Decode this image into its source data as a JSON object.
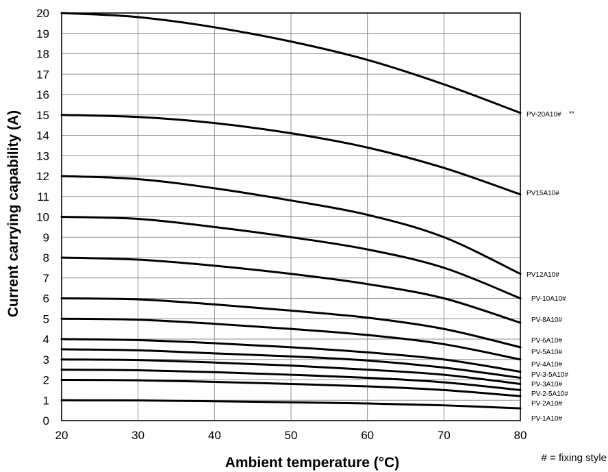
{
  "chart_data": {
    "type": "line",
    "title": "",
    "xlabel": "Ambient temperature  (°C)",
    "ylabel": "Current carrying capability (A)",
    "xlim": [
      20,
      80
    ],
    "ylim": [
      0,
      20
    ],
    "xticks": [
      "20",
      "30",
      "40",
      "50",
      "60",
      "70",
      "80"
    ],
    "yticks": [
      "0",
      "1",
      "2",
      "3",
      "4",
      "5",
      "6",
      "7",
      "8",
      "9",
      "10",
      "11",
      "12",
      "13",
      "14",
      "15",
      "16",
      "17",
      "18",
      "19",
      "20"
    ],
    "grid": true,
    "x": [
      20,
      30,
      40,
      50,
      60,
      70,
      80
    ],
    "series": [
      {
        "name": "PV-20A10#",
        "values": [
          20,
          19.8,
          19.3,
          18.6,
          17.7,
          16.5,
          15.1
        ]
      },
      {
        "name": "PV15A10#",
        "values": [
          15,
          14.9,
          14.6,
          14.1,
          13.4,
          12.4,
          11.1
        ]
      },
      {
        "name": "PV12A10#",
        "values": [
          12,
          11.85,
          11.4,
          10.8,
          10.1,
          9.0,
          7.2
        ]
      },
      {
        "name": "PV-10A10#",
        "values": [
          10,
          9.9,
          9.5,
          9.0,
          8.4,
          7.5,
          6.0
        ]
      },
      {
        "name": "PV-8A10#",
        "values": [
          8,
          7.9,
          7.6,
          7.2,
          6.7,
          6.0,
          4.8
        ]
      },
      {
        "name": "PV-6A10#",
        "values": [
          6,
          5.95,
          5.7,
          5.4,
          5.05,
          4.5,
          3.6
        ]
      },
      {
        "name": "PV-5A10#",
        "values": [
          5,
          4.95,
          4.75,
          4.5,
          4.2,
          3.75,
          3.0
        ]
      },
      {
        "name": "PV-4A10#",
        "values": [
          4,
          3.95,
          3.8,
          3.6,
          3.35,
          3.0,
          2.4
        ]
      },
      {
        "name": "PV-3-5A10#",
        "values": [
          3.5,
          3.45,
          3.3,
          3.15,
          2.95,
          2.6,
          2.1
        ]
      },
      {
        "name": "PV-3A10#",
        "values": [
          3,
          2.97,
          2.85,
          2.7,
          2.5,
          2.25,
          1.8
        ]
      },
      {
        "name": "PV-2-5A10#",
        "values": [
          2.5,
          2.47,
          2.38,
          2.25,
          2.1,
          1.88,
          1.5
        ]
      },
      {
        "name": "PV-2A10#",
        "values": [
          2,
          1.98,
          1.9,
          1.8,
          1.68,
          1.5,
          1.2
        ]
      },
      {
        "name": "PV-1A10#",
        "values": [
          1,
          0.99,
          0.95,
          0.9,
          0.84,
          0.75,
          0.6
        ]
      }
    ],
    "annotations": [
      "**"
    ],
    "note": "# = fixing style"
  }
}
